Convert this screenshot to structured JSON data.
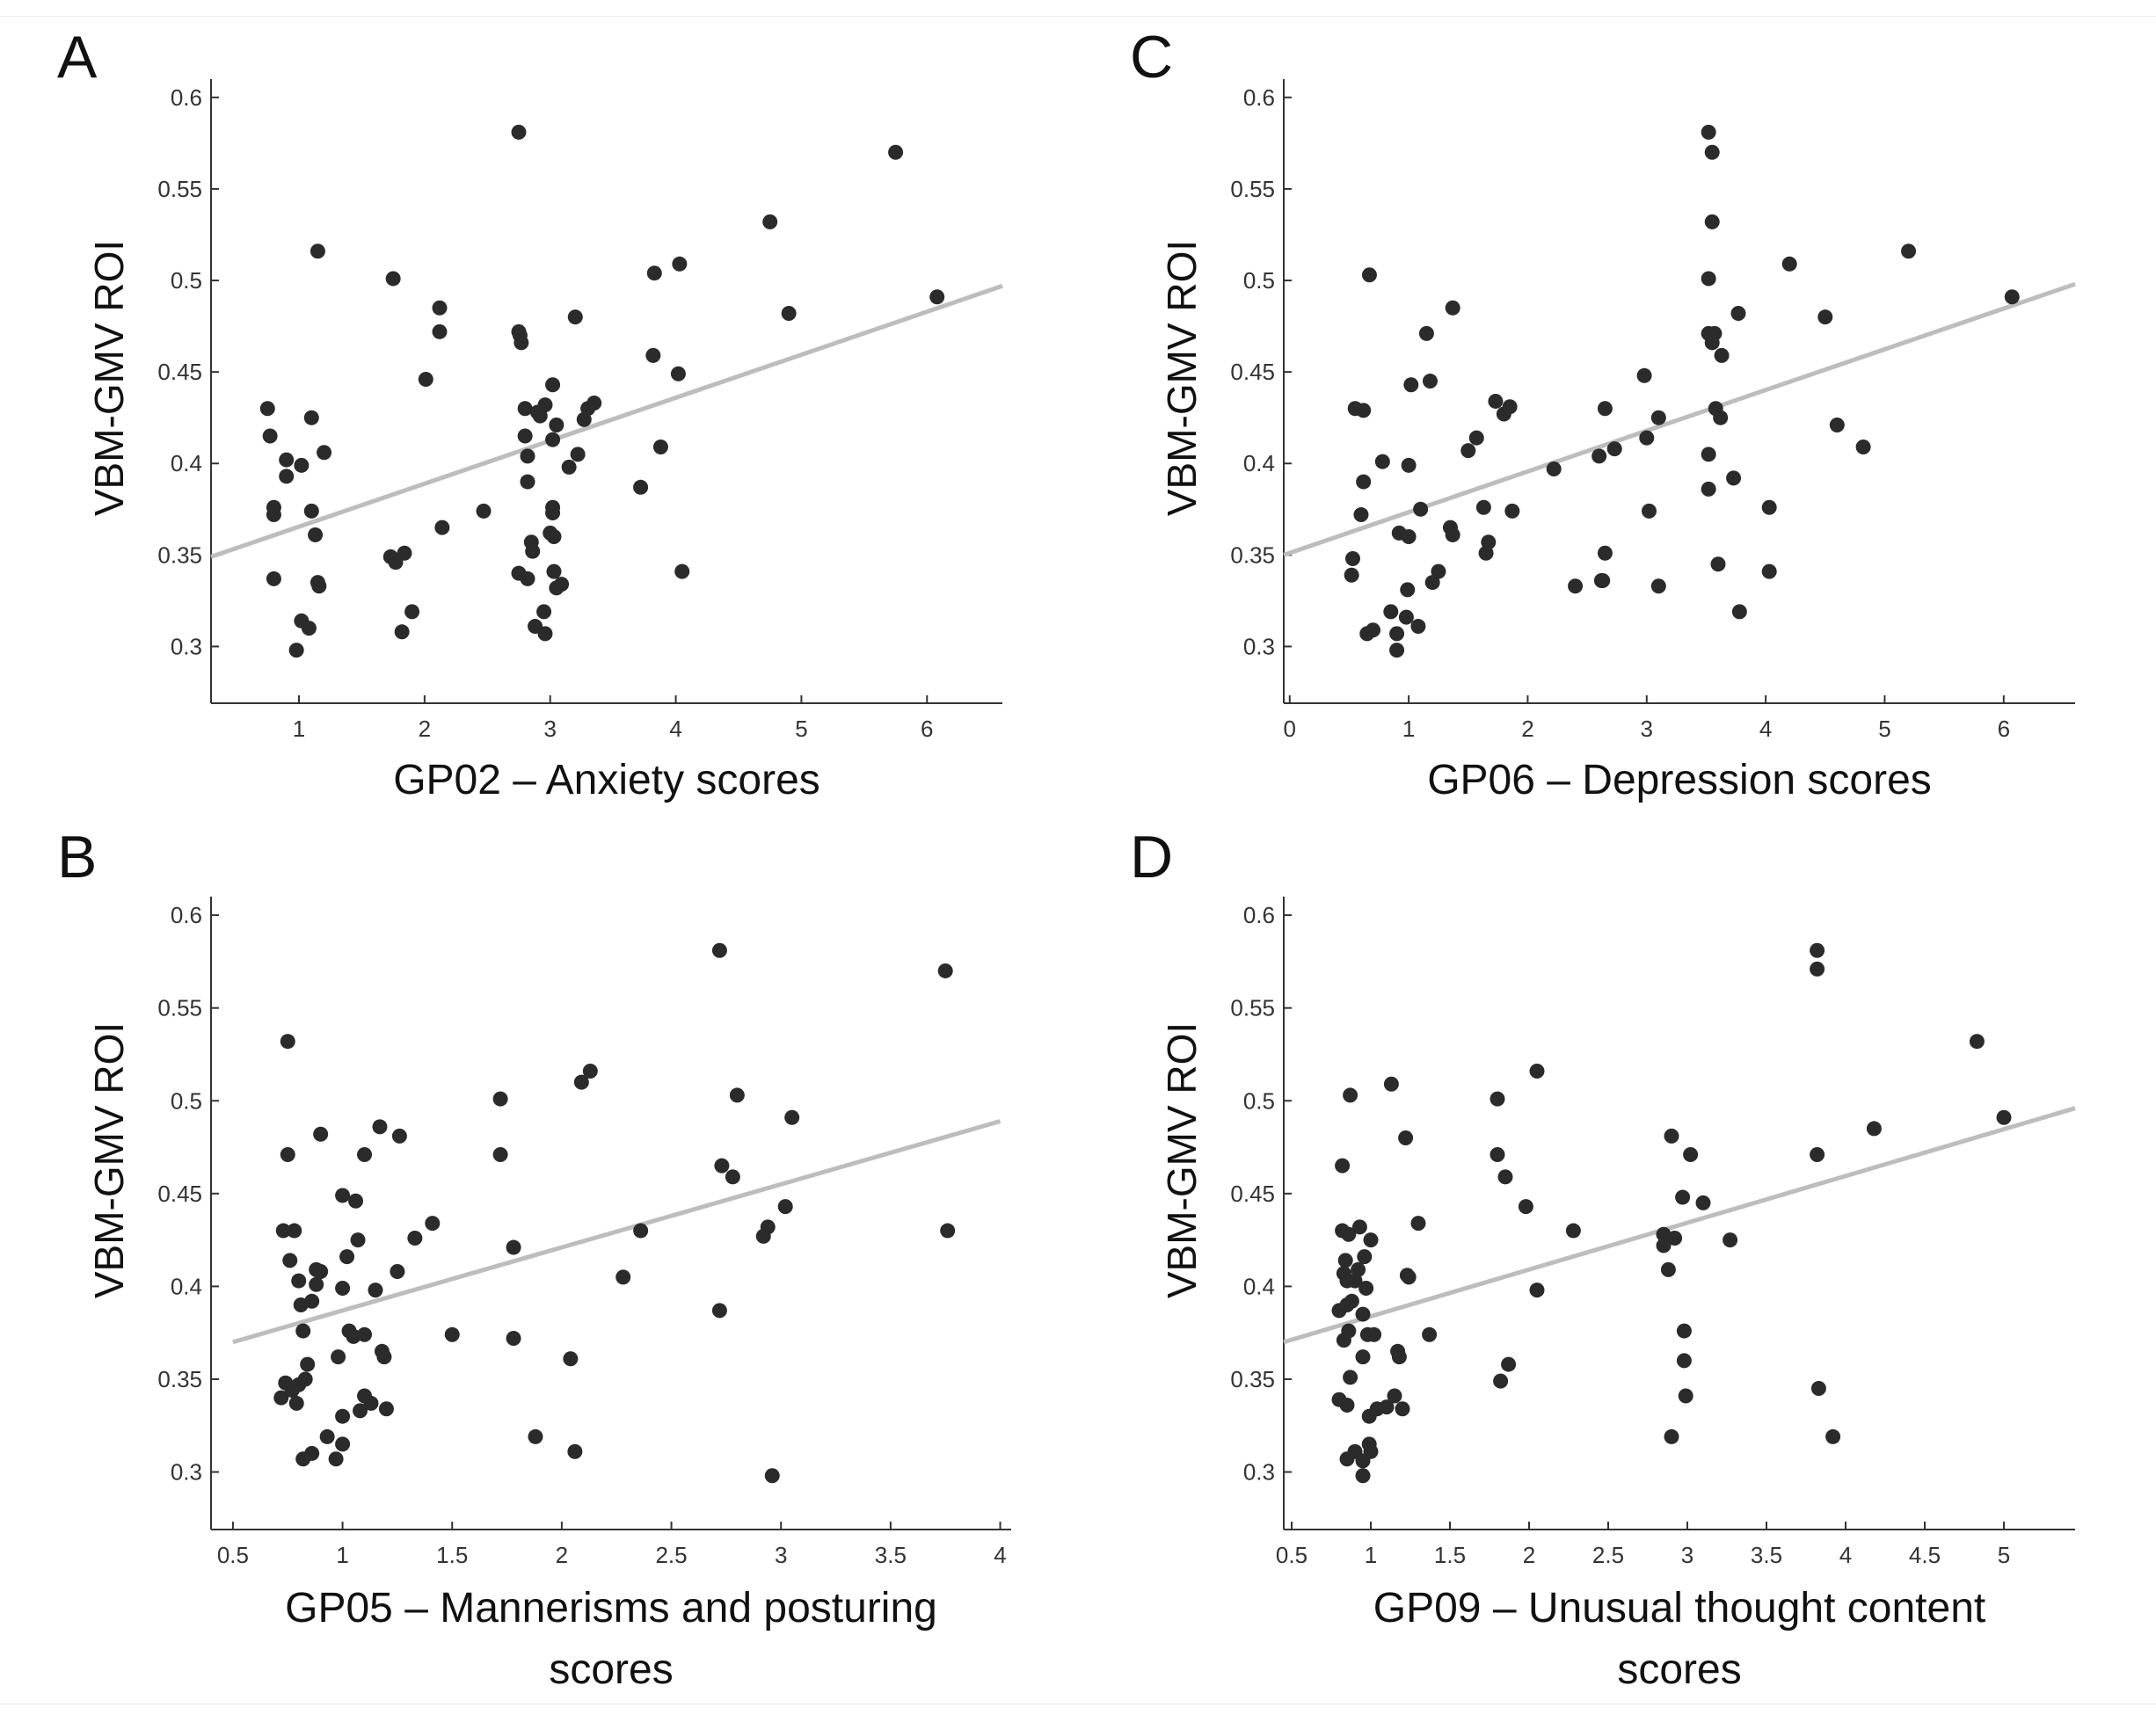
{
  "chart_data": [
    {
      "panel_label": "A",
      "type": "scatter",
      "title": "",
      "xlabel": [
        "GP02 – Anxiety scores"
      ],
      "ylabel": "VBM-GMV ROI",
      "xlim": [
        0.3,
        6.6
      ],
      "ylim": [
        0.269,
        0.61
      ],
      "xticks": [
        1,
        2,
        3,
        4,
        5,
        6
      ],
      "yticks": [
        0.3,
        0.35,
        0.4,
        0.45,
        0.5,
        0.55,
        0.6
      ],
      "grid": false,
      "fit_line": {
        "x": [
          0.3,
          6.6
        ],
        "y": [
          0.349,
          0.497
        ]
      },
      "points": [
        [
          0.75,
          0.43
        ],
        [
          0.77,
          0.415
        ],
        [
          0.8,
          0.372
        ],
        [
          0.8,
          0.376
        ],
        [
          0.8,
          0.337
        ],
        [
          0.9,
          0.393
        ],
        [
          0.9,
          0.402
        ],
        [
          0.98,
          0.298
        ],
        [
          1.02,
          0.314
        ],
        [
          1.02,
          0.399
        ],
        [
          1.08,
          0.31
        ],
        [
          1.1,
          0.425
        ],
        [
          1.1,
          0.374
        ],
        [
          1.13,
          0.361
        ],
        [
          1.15,
          0.516
        ],
        [
          1.15,
          0.335
        ],
        [
          1.16,
          0.333
        ],
        [
          1.2,
          0.406
        ],
        [
          1.73,
          0.349
        ],
        [
          1.75,
          0.501
        ],
        [
          1.77,
          0.346
        ],
        [
          1.82,
          0.308
        ],
        [
          1.84,
          0.351
        ],
        [
          1.9,
          0.319
        ],
        [
          2.01,
          0.446
        ],
        [
          2.12,
          0.485
        ],
        [
          2.12,
          0.472
        ],
        [
          2.14,
          0.365
        ],
        [
          2.47,
          0.374
        ],
        [
          2.75,
          0.581
        ],
        [
          2.75,
          0.472
        ],
        [
          2.75,
          0.34
        ],
        [
          2.76,
          0.47
        ],
        [
          2.77,
          0.466
        ],
        [
          2.8,
          0.43
        ],
        [
          2.8,
          0.415
        ],
        [
          2.82,
          0.404
        ],
        [
          2.82,
          0.39
        ],
        [
          2.82,
          0.337
        ],
        [
          2.85,
          0.357
        ],
        [
          2.86,
          0.352
        ],
        [
          2.88,
          0.311
        ],
        [
          2.9,
          0.428
        ],
        [
          2.92,
          0.426
        ],
        [
          2.95,
          0.319
        ],
        [
          2.96,
          0.432
        ],
        [
          2.96,
          0.307
        ],
        [
          3.0,
          0.362
        ],
        [
          3.02,
          0.443
        ],
        [
          3.02,
          0.413
        ],
        [
          3.02,
          0.376
        ],
        [
          3.02,
          0.373
        ],
        [
          3.03,
          0.36
        ],
        [
          3.03,
          0.341
        ],
        [
          3.05,
          0.332
        ],
        [
          3.05,
          0.421
        ],
        [
          3.09,
          0.334
        ],
        [
          3.15,
          0.398
        ],
        [
          3.2,
          0.48
        ],
        [
          3.22,
          0.405
        ],
        [
          3.27,
          0.424
        ],
        [
          3.3,
          0.43
        ],
        [
          3.35,
          0.433
        ],
        [
          3.72,
          0.387
        ],
        [
          3.82,
          0.459
        ],
        [
          3.83,
          0.504
        ],
        [
          3.88,
          0.409
        ],
        [
          4.02,
          0.449
        ],
        [
          4.03,
          0.509
        ],
        [
          4.05,
          0.341
        ],
        [
          4.75,
          0.532
        ],
        [
          4.9,
          0.482
        ],
        [
          5.75,
          0.57
        ],
        [
          6.08,
          0.491
        ]
      ]
    },
    {
      "panel_label": "B",
      "type": "scatter",
      "title": "",
      "xlabel": [
        "GP05 –  Mannerisms and posturing",
        "scores"
      ],
      "ylabel": "VBM-GMV ROI",
      "xlim": [
        0.4,
        4.05
      ],
      "ylim": [
        0.269,
        0.61
      ],
      "xticks": [
        0.5,
        1,
        1.5,
        2,
        2.5,
        3,
        3.5,
        4
      ],
      "yticks": [
        0.3,
        0.35,
        0.4,
        0.45,
        0.5,
        0.55,
        0.6
      ],
      "grid": false,
      "fit_line": {
        "x": [
          0.5,
          4.0
        ],
        "y": [
          0.37,
          0.489
        ]
      },
      "points": [
        [
          0.72,
          0.34
        ],
        [
          0.73,
          0.43
        ],
        [
          0.74,
          0.348
        ],
        [
          0.75,
          0.532
        ],
        [
          0.75,
          0.471
        ],
        [
          0.76,
          0.414
        ],
        [
          0.77,
          0.344
        ],
        [
          0.78,
          0.43
        ],
        [
          0.79,
          0.337
        ],
        [
          0.8,
          0.347
        ],
        [
          0.8,
          0.403
        ],
        [
          0.81,
          0.39
        ],
        [
          0.82,
          0.376
        ],
        [
          0.82,
          0.307
        ],
        [
          0.83,
          0.35
        ],
        [
          0.84,
          0.358
        ],
        [
          0.86,
          0.31
        ],
        [
          0.86,
          0.392
        ],
        [
          0.88,
          0.401
        ],
        [
          0.88,
          0.409
        ],
        [
          0.9,
          0.482
        ],
        [
          0.9,
          0.408
        ],
        [
          0.93,
          0.319
        ],
        [
          0.97,
          0.307
        ],
        [
          0.98,
          0.362
        ],
        [
          1.0,
          0.449
        ],
        [
          1.0,
          0.399
        ],
        [
          1.0,
          0.33
        ],
        [
          1.0,
          0.315
        ],
        [
          1.02,
          0.416
        ],
        [
          1.03,
          0.376
        ],
        [
          1.05,
          0.373
        ],
        [
          1.06,
          0.446
        ],
        [
          1.07,
          0.425
        ],
        [
          1.08,
          0.333
        ],
        [
          1.1,
          0.374
        ],
        [
          1.1,
          0.341
        ],
        [
          1.1,
          0.471
        ],
        [
          1.13,
          0.337
        ],
        [
          1.15,
          0.398
        ],
        [
          1.17,
          0.486
        ],
        [
          1.18,
          0.365
        ],
        [
          1.19,
          0.362
        ],
        [
          1.2,
          0.334
        ],
        [
          1.25,
          0.408
        ],
        [
          1.26,
          0.481
        ],
        [
          1.33,
          0.426
        ],
        [
          1.41,
          0.434
        ],
        [
          1.5,
          0.374
        ],
        [
          1.72,
          0.501
        ],
        [
          1.72,
          0.471
        ],
        [
          1.78,
          0.421
        ],
        [
          1.78,
          0.372
        ],
        [
          1.88,
          0.319
        ],
        [
          2.04,
          0.361
        ],
        [
          2.06,
          0.311
        ],
        [
          2.09,
          0.51
        ],
        [
          2.13,
          0.516
        ],
        [
          2.28,
          0.405
        ],
        [
          2.36,
          0.43
        ],
        [
          2.72,
          0.581
        ],
        [
          2.72,
          0.387
        ],
        [
          2.73,
          0.465
        ],
        [
          2.78,
          0.459
        ],
        [
          2.8,
          0.503
        ],
        [
          2.92,
          0.427
        ],
        [
          2.94,
          0.432
        ],
        [
          2.96,
          0.298
        ],
        [
          3.02,
          0.443
        ],
        [
          3.05,
          0.491
        ],
        [
          3.75,
          0.57
        ],
        [
          3.76,
          0.43
        ]
      ]
    },
    {
      "panel_label": "C",
      "type": "scatter",
      "title": "",
      "xlabel": [
        "GP06 – Depression scores"
      ],
      "ylabel": "VBM-GMV ROI",
      "xlim": [
        -0.05,
        6.6
      ],
      "ylim": [
        0.269,
        0.61
      ],
      "xticks": [
        0,
        1,
        2,
        3,
        4,
        5,
        6
      ],
      "yticks": [
        0.3,
        0.35,
        0.4,
        0.45,
        0.5,
        0.55,
        0.6
      ],
      "grid": false,
      "fit_line": {
        "x": [
          -0.05,
          6.6
        ],
        "y": [
          0.35,
          0.498
        ]
      },
      "points": [
        [
          0.52,
          0.339
        ],
        [
          0.53,
          0.348
        ],
        [
          0.55,
          0.43
        ],
        [
          0.6,
          0.372
        ],
        [
          0.62,
          0.39
        ],
        [
          0.62,
          0.429
        ],
        [
          0.65,
          0.307
        ],
        [
          0.67,
          0.503
        ],
        [
          0.7,
          0.309
        ],
        [
          0.78,
          0.401
        ],
        [
          0.85,
          0.319
        ],
        [
          0.9,
          0.298
        ],
        [
          0.9,
          0.307
        ],
        [
          0.92,
          0.362
        ],
        [
          0.98,
          0.316
        ],
        [
          0.99,
          0.331
        ],
        [
          1.0,
          0.399
        ],
        [
          1.0,
          0.36
        ],
        [
          1.02,
          0.443
        ],
        [
          1.08,
          0.311
        ],
        [
          1.1,
          0.375
        ],
        [
          1.15,
          0.471
        ],
        [
          1.18,
          0.445
        ],
        [
          1.2,
          0.335
        ],
        [
          1.25,
          0.341
        ],
        [
          1.35,
          0.365
        ],
        [
          1.37,
          0.361
        ],
        [
          1.37,
          0.485
        ],
        [
          1.5,
          0.407
        ],
        [
          1.57,
          0.414
        ],
        [
          1.63,
          0.376
        ],
        [
          1.65,
          0.351
        ],
        [
          1.67,
          0.357
        ],
        [
          1.73,
          0.434
        ],
        [
          1.8,
          0.427
        ],
        [
          1.85,
          0.431
        ],
        [
          1.87,
          0.374
        ],
        [
          2.22,
          0.397
        ],
        [
          2.4,
          0.333
        ],
        [
          2.6,
          0.404
        ],
        [
          2.62,
          0.336
        ],
        [
          2.63,
          0.336
        ],
        [
          2.65,
          0.351
        ],
        [
          2.65,
          0.43
        ],
        [
          2.73,
          0.408
        ],
        [
          2.98,
          0.448
        ],
        [
          3.0,
          0.414
        ],
        [
          3.02,
          0.374
        ],
        [
          3.1,
          0.425
        ],
        [
          3.1,
          0.333
        ],
        [
          3.52,
          0.581
        ],
        [
          3.52,
          0.501
        ],
        [
          3.52,
          0.471
        ],
        [
          3.52,
          0.405
        ],
        [
          3.52,
          0.386
        ],
        [
          3.55,
          0.57
        ],
        [
          3.55,
          0.532
        ],
        [
          3.55,
          0.466
        ],
        [
          3.57,
          0.471
        ],
        [
          3.58,
          0.43
        ],
        [
          3.6,
          0.345
        ],
        [
          3.62,
          0.425
        ],
        [
          3.63,
          0.459
        ],
        [
          3.73,
          0.392
        ],
        [
          3.77,
          0.482
        ],
        [
          3.78,
          0.319
        ],
        [
          4.03,
          0.376
        ],
        [
          4.03,
          0.341
        ],
        [
          4.2,
          0.509
        ],
        [
          4.5,
          0.48
        ],
        [
          4.6,
          0.421
        ],
        [
          4.82,
          0.409
        ],
        [
          5.2,
          0.516
        ],
        [
          6.07,
          0.491
        ]
      ]
    },
    {
      "panel_label": "D",
      "type": "scatter",
      "title": "",
      "xlabel": [
        "GP09 – Unusual thought content",
        "scores"
      ],
      "ylabel": "VBM-GMV ROI",
      "xlim": [
        0.45,
        5.45
      ],
      "ylim": [
        0.269,
        0.61
      ],
      "xticks": [
        0.5,
        1,
        1.5,
        2,
        2.5,
        3,
        3.5,
        4,
        4.5,
        5
      ],
      "yticks": [
        0.3,
        0.35,
        0.4,
        0.45,
        0.5,
        0.55,
        0.6
      ],
      "grid": false,
      "fit_line": {
        "x": [
          0.45,
          5.45
        ],
        "y": [
          0.37,
          0.496
        ]
      },
      "points": [
        [
          0.8,
          0.339
        ],
        [
          0.8,
          0.387
        ],
        [
          0.82,
          0.465
        ],
        [
          0.82,
          0.43
        ],
        [
          0.83,
          0.371
        ],
        [
          0.83,
          0.407
        ],
        [
          0.84,
          0.414
        ],
        [
          0.85,
          0.336
        ],
        [
          0.85,
          0.403
        ],
        [
          0.85,
          0.39
        ],
        [
          0.85,
          0.307
        ],
        [
          0.86,
          0.428
        ],
        [
          0.86,
          0.376
        ],
        [
          0.87,
          0.351
        ],
        [
          0.87,
          0.503
        ],
        [
          0.88,
          0.392
        ],
        [
          0.9,
          0.311
        ],
        [
          0.9,
          0.403
        ],
        [
          0.92,
          0.409
        ],
        [
          0.93,
          0.432
        ],
        [
          0.95,
          0.306
        ],
        [
          0.95,
          0.298
        ],
        [
          0.95,
          0.385
        ],
        [
          0.95,
          0.362
        ],
        [
          0.96,
          0.416
        ],
        [
          0.97,
          0.399
        ],
        [
          0.98,
          0.374
        ],
        [
          0.99,
          0.33
        ],
        [
          0.99,
          0.315
        ],
        [
          1.0,
          0.311
        ],
        [
          1.0,
          0.425
        ],
        [
          1.02,
          0.374
        ],
        [
          1.04,
          0.334
        ],
        [
          1.1,
          0.335
        ],
        [
          1.13,
          0.509
        ],
        [
          1.15,
          0.341
        ],
        [
          1.17,
          0.365
        ],
        [
          1.18,
          0.362
        ],
        [
          1.2,
          0.334
        ],
        [
          1.22,
          0.48
        ],
        [
          1.23,
          0.406
        ],
        [
          1.24,
          0.405
        ],
        [
          1.3,
          0.434
        ],
        [
          1.37,
          0.374
        ],
        [
          1.8,
          0.501
        ],
        [
          1.8,
          0.471
        ],
        [
          1.82,
          0.349
        ],
        [
          1.85,
          0.459
        ],
        [
          1.87,
          0.358
        ],
        [
          1.98,
          0.443
        ],
        [
          2.05,
          0.516
        ],
        [
          2.05,
          0.398
        ],
        [
          2.28,
          0.43
        ],
        [
          2.85,
          0.428
        ],
        [
          2.85,
          0.422
        ],
        [
          2.88,
          0.409
        ],
        [
          2.9,
          0.481
        ],
        [
          2.9,
          0.319
        ],
        [
          2.92,
          0.426
        ],
        [
          2.97,
          0.448
        ],
        [
          2.98,
          0.376
        ],
        [
          2.98,
          0.36
        ],
        [
          2.99,
          0.341
        ],
        [
          3.02,
          0.471
        ],
        [
          3.1,
          0.445
        ],
        [
          3.27,
          0.425
        ],
        [
          3.82,
          0.581
        ],
        [
          3.82,
          0.571
        ],
        [
          3.82,
          0.471
        ],
        [
          3.83,
          0.345
        ],
        [
          3.92,
          0.319
        ],
        [
          4.18,
          0.485
        ],
        [
          4.83,
          0.532
        ],
        [
          5.0,
          0.491
        ]
      ]
    }
  ]
}
